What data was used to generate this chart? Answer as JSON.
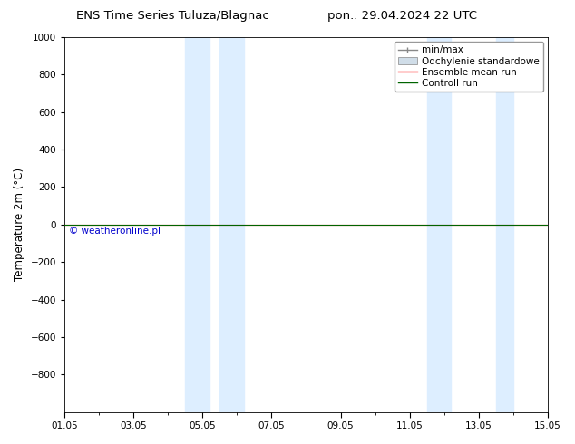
{
  "title_left": "ENS Time Series Tuluza/Blagnac",
  "title_right": "pon.. 29.04.2024 22 UTC",
  "ylabel": "Temperature 2m (°C)",
  "ylim_top": -1000,
  "ylim_bottom": 1000,
  "yticks": [
    -800,
    -600,
    -400,
    -200,
    0,
    200,
    400,
    600,
    800,
    1000
  ],
  "xtick_labels": [
    "01.05",
    "03.05",
    "05.05",
    "07.05",
    "09.05",
    "11.05",
    "13.05",
    "15.05"
  ],
  "xtick_positions": [
    0,
    2,
    4,
    6,
    8,
    10,
    12,
    14
  ],
  "shaded_bands": [
    {
      "x_start": 3.5,
      "x_end": 4.2,
      "color": "#ddeeff"
    },
    {
      "x_start": 4.5,
      "x_end": 5.2,
      "color": "#ddeeff"
    },
    {
      "x_start": 10.5,
      "x_end": 11.2,
      "color": "#ddeeff"
    },
    {
      "x_start": 12.5,
      "x_end": 13.0,
      "color": "#ddeeff"
    }
  ],
  "control_run_y": 0,
  "ensemble_mean_y": 0,
  "legend_items": [
    {
      "label": "min/max",
      "color": "#888888",
      "linestyle": "-"
    },
    {
      "label": "Odchylenie standardowe",
      "color": "#cccccc",
      "linestyle": "-",
      "fill": true
    },
    {
      "label": "Ensemble mean run",
      "color": "#ff0000",
      "linestyle": "-"
    },
    {
      "label": "Controll run",
      "color": "#006400",
      "linestyle": "-"
    }
  ],
  "copyright_text": "© weatheronline.pl",
  "copyright_color": "#0000cc",
  "background_color": "#ffffff",
  "plot_bg_color": "#ffffff",
  "title_fontsize": 9.5,
  "axis_label_fontsize": 8.5,
  "tick_fontsize": 7.5,
  "legend_fontsize": 7.5
}
